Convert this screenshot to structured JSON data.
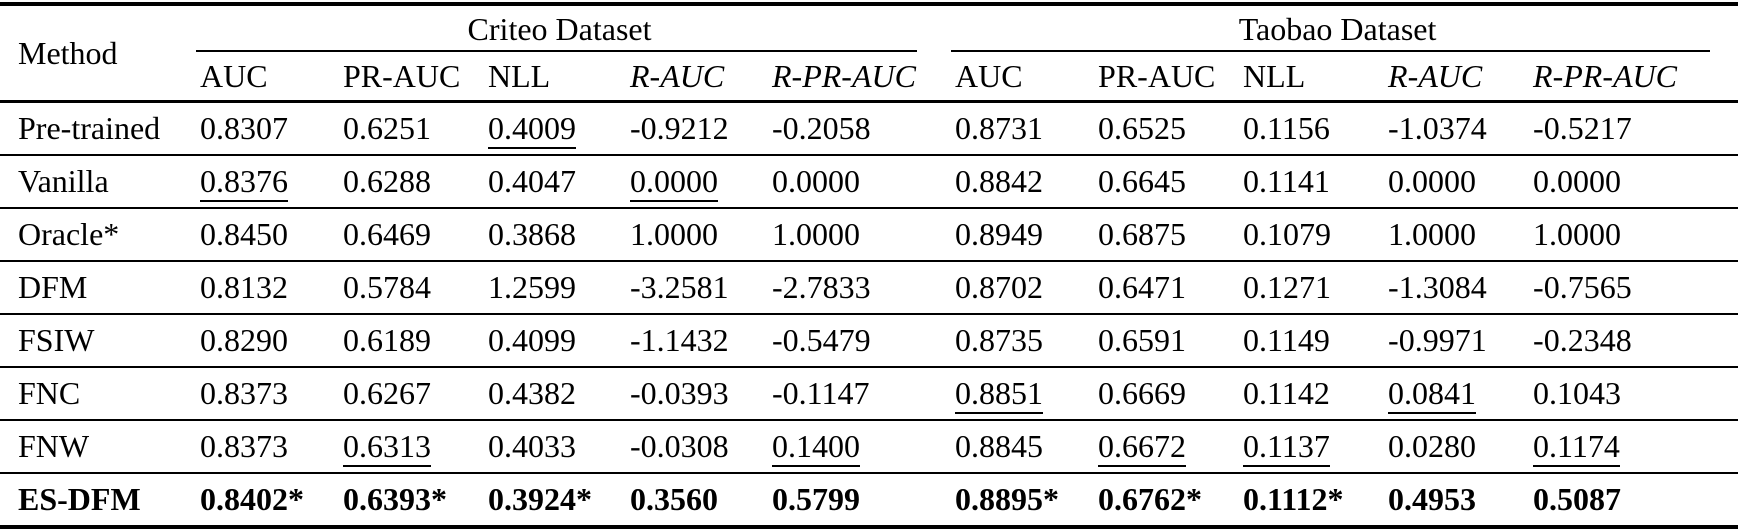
{
  "page": {
    "background_color": "#ffffff",
    "text_color": "#000000"
  },
  "table": {
    "method_header": "Method",
    "groups": [
      {
        "label": "Criteo Dataset"
      },
      {
        "label": "Taobao Dataset"
      }
    ],
    "columns": [
      {
        "label": "AUC",
        "italic": false
      },
      {
        "label": "PR-AUC",
        "italic": false
      },
      {
        "label": "NLL",
        "italic": false
      },
      {
        "label": "R-AUC",
        "italic": true
      },
      {
        "label": "R-PR-AUC",
        "italic": true
      },
      {
        "label": "AUC",
        "italic": false
      },
      {
        "label": "PR-AUC",
        "italic": false
      },
      {
        "label": "NLL",
        "italic": false
      },
      {
        "label": "R-AUC",
        "italic": true
      },
      {
        "label": "R-PR-AUC",
        "italic": true
      }
    ],
    "rows": [
      {
        "method": "Pre-trained",
        "bold": false,
        "values": [
          "0.8307",
          "0.6251",
          "0.4009",
          "-0.9212",
          "-0.2058",
          "0.8731",
          "0.6525",
          "0.1156",
          "-1.0374",
          "-0.5217"
        ],
        "underline": [
          2
        ]
      },
      {
        "method": "Vanilla",
        "bold": false,
        "values": [
          "0.8376",
          "0.6288",
          "0.4047",
          "0.0000",
          "0.0000",
          "0.8842",
          "0.6645",
          "0.1141",
          "0.0000",
          "0.0000"
        ],
        "underline": [
          0,
          3
        ]
      },
      {
        "method": "Oracle*",
        "bold": false,
        "values": [
          "0.8450",
          "0.6469",
          "0.3868",
          "1.0000",
          "1.0000",
          "0.8949",
          "0.6875",
          "0.1079",
          "1.0000",
          "1.0000"
        ],
        "underline": []
      },
      {
        "method": "DFM",
        "bold": false,
        "values": [
          "0.8132",
          "0.5784",
          "1.2599",
          "-3.2581",
          "-2.7833",
          "0.8702",
          "0.6471",
          "0.1271",
          "-1.3084",
          "-0.7565"
        ],
        "underline": []
      },
      {
        "method": "FSIW",
        "bold": false,
        "values": [
          "0.8290",
          "0.6189",
          "0.4099",
          "-1.1432",
          "-0.5479",
          "0.8735",
          "0.6591",
          "0.1149",
          "-0.9971",
          "-0.2348"
        ],
        "underline": []
      },
      {
        "method": "FNC",
        "bold": false,
        "values": [
          "0.8373",
          "0.6267",
          "0.4382",
          "-0.0393",
          "-0.1147",
          "0.8851",
          "0.6669",
          "0.1142",
          "0.0841",
          "0.1043"
        ],
        "underline": [
          5,
          8
        ]
      },
      {
        "method": "FNW",
        "bold": false,
        "values": [
          "0.8373",
          "0.6313",
          "0.4033",
          "-0.0308",
          "0.1400",
          "0.8845",
          "0.6672",
          "0.1137",
          "0.0280",
          "0.1174"
        ],
        "underline": [
          1,
          4,
          6,
          7,
          9
        ]
      },
      {
        "method": "ES-DFM",
        "bold": true,
        "values": [
          "0.8402*",
          "0.6393*",
          "0.3924*",
          "0.3560",
          "0.5799",
          "0.8895*",
          "0.6762*",
          "0.1112*",
          "0.4953",
          "0.5087"
        ],
        "underline": []
      }
    ]
  }
}
